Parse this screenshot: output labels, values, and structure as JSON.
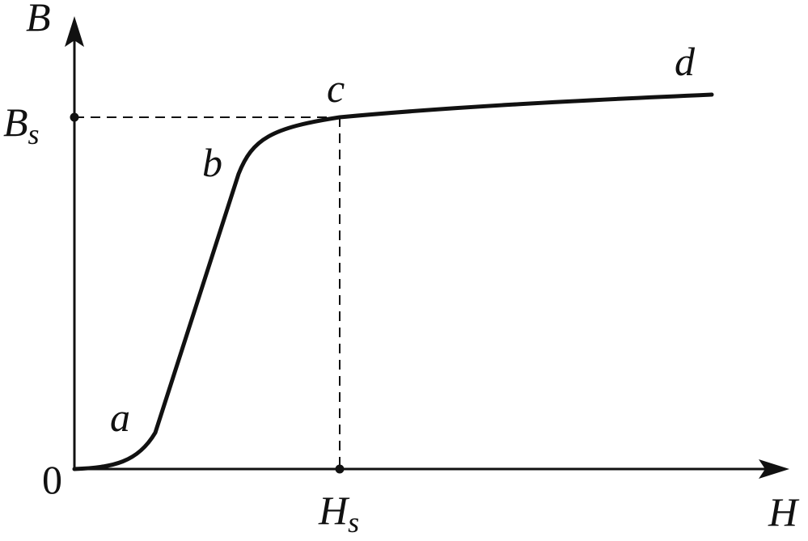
{
  "axes": {
    "y_label": "B",
    "x_label": "H",
    "origin": "0"
  },
  "saturation_flux": {
    "symbol": "B",
    "subscript": "s"
  },
  "saturation_field": {
    "symbol": "H",
    "subscript": "s"
  },
  "points": {
    "a": "a",
    "b": "b",
    "c": "c",
    "d": "d"
  }
}
